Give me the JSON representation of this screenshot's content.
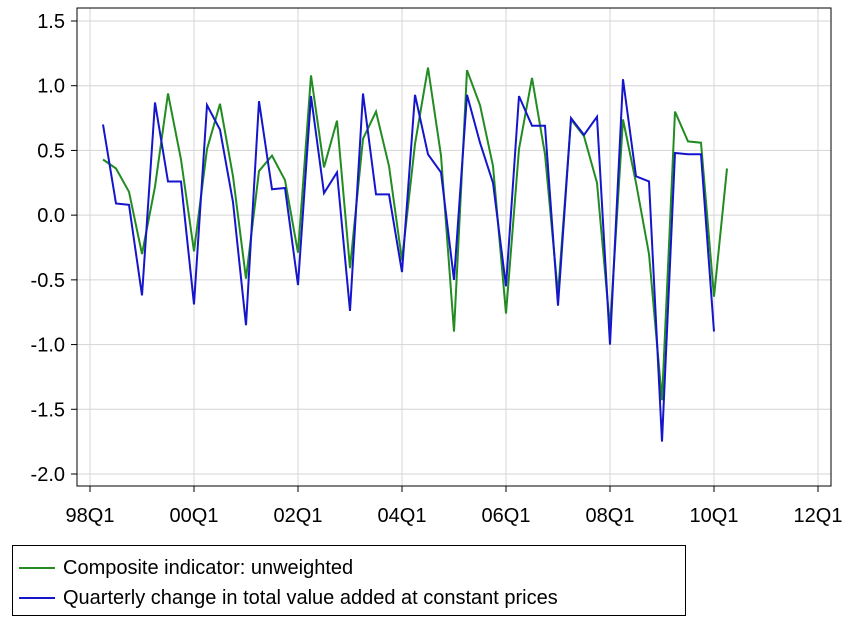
{
  "chart_data": {
    "type": "line",
    "title": "",
    "xlabel": "",
    "ylabel": "",
    "x_ticks": [
      "98Q1",
      "00Q1",
      "02Q1",
      "04Q1",
      "06Q1",
      "08Q1",
      "10Q1",
      "12Q1"
    ],
    "y_ticks": [
      "1.5",
      "1.0",
      "0.5",
      "0.0",
      "-0.5",
      "-1.0",
      "-1.5",
      "-2.0"
    ],
    "xlim": [
      "1998Q1",
      "2012Q1"
    ],
    "ylim": [
      -2.0,
      1.5
    ],
    "grid": true,
    "legend_position": "bottom",
    "x": [
      "1998Q2",
      "1998Q3",
      "1998Q4",
      "1999Q1",
      "1999Q2",
      "1999Q3",
      "1999Q4",
      "2000Q1",
      "2000Q2",
      "2000Q3",
      "2000Q4",
      "2001Q1",
      "2001Q2",
      "2001Q3",
      "2001Q4",
      "2002Q1",
      "2002Q2",
      "2002Q3",
      "2002Q4",
      "2003Q1",
      "2003Q2",
      "2003Q3",
      "2003Q4",
      "2004Q1",
      "2004Q2",
      "2004Q3",
      "2004Q4",
      "2005Q1",
      "2005Q2",
      "2005Q3",
      "2005Q4",
      "2006Q1",
      "2006Q2",
      "2006Q3",
      "2006Q4",
      "2007Q1",
      "2007Q2",
      "2007Q3",
      "2007Q4",
      "2008Q1",
      "2008Q2",
      "2008Q3",
      "2008Q4",
      "2009Q1",
      "2009Q2",
      "2009Q3",
      "2009Q4",
      "2010Q1",
      "2010Q2"
    ],
    "series": [
      {
        "name": "Composite indicator: unweighted",
        "color": "#228B22",
        "values": [
          0.43,
          0.36,
          0.18,
          -0.3,
          0.22,
          0.94,
          0.43,
          -0.28,
          0.51,
          0.86,
          0.3,
          -0.49,
          0.34,
          0.46,
          0.27,
          -0.29,
          1.08,
          0.37,
          0.73,
          -0.41,
          0.59,
          0.8,
          0.38,
          -0.35,
          0.55,
          1.14,
          0.46,
          -0.9,
          1.12,
          0.85,
          0.38,
          -0.76,
          0.51,
          1.06,
          0.47,
          -0.61,
          0.74,
          0.61,
          0.25,
          -0.87,
          0.74,
          0.25,
          -0.3,
          -1.43,
          0.8,
          0.57,
          0.56,
          -0.63,
          0.36
        ]
      },
      {
        "name": "Quarterly change in total value added at constant prices",
        "color": "#1515CC",
        "values": [
          0.7,
          0.09,
          0.08,
          -0.62,
          0.87,
          0.26,
          0.26,
          -0.69,
          0.85,
          0.66,
          0.1,
          -0.85,
          0.88,
          0.2,
          0.21,
          -0.54,
          0.92,
          0.17,
          0.33,
          -0.74,
          0.94,
          0.16,
          0.16,
          -0.44,
          0.93,
          0.47,
          0.33,
          -0.5,
          0.93,
          0.56,
          0.25,
          -0.55,
          0.92,
          0.69,
          0.69,
          -0.7,
          0.75,
          0.62,
          0.76,
          -1.0,
          1.05,
          0.3,
          0.26,
          -1.75,
          0.48,
          0.47,
          0.47,
          -0.9,
          null
        ]
      }
    ]
  }
}
